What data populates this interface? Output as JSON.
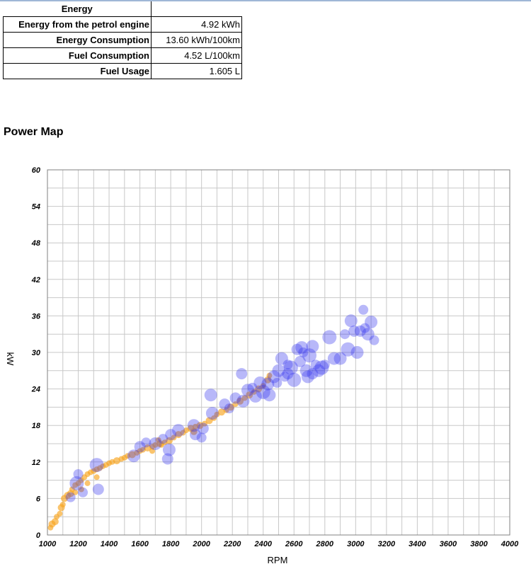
{
  "energy_table": {
    "heading": "Energy",
    "rows": [
      {
        "label": "Energy from the petrol engine",
        "value": "4.92 kWh"
      },
      {
        "label": "Energy Consumption",
        "value": "13.60 kWh/100km"
      },
      {
        "label": "Fuel Consumption",
        "value": "4.52 L/100km"
      },
      {
        "label": "Fuel Usage",
        "value": "1.605 L"
      }
    ]
  },
  "section_title": "Power Map",
  "chart_data": {
    "type": "scatter",
    "xlabel": "RPM",
    "ylabel": "kW",
    "xlim": [
      1000,
      4000
    ],
    "ylim": [
      0,
      60
    ],
    "xticks": [
      1000,
      1200,
      1400,
      1600,
      1800,
      2000,
      2200,
      2400,
      2600,
      2800,
      3000,
      3200,
      3400,
      3600,
      3800,
      4000
    ],
    "yticks": [
      0,
      6,
      12,
      18,
      24,
      30,
      36,
      42,
      48,
      54,
      60
    ],
    "grid": true,
    "legend": "none",
    "colors": {
      "orange": "#f7a51e",
      "blue": "#3333ee"
    },
    "series": [
      {
        "color": "orange",
        "points": [
          [
            1020,
            1.2
          ],
          [
            1030,
            1.8
          ],
          [
            1050,
            2.2
          ],
          [
            1060,
            3.0
          ],
          [
            1080,
            3.5
          ],
          [
            1090,
            4.5
          ],
          [
            1100,
            5.0
          ],
          [
            1110,
            6.0
          ],
          [
            1130,
            6.5
          ],
          [
            1150,
            6.8
          ],
          [
            1160,
            7.5
          ],
          [
            1180,
            8.2
          ],
          [
            1200,
            8.5
          ],
          [
            1220,
            9.0
          ],
          [
            1240,
            9.5
          ],
          [
            1260,
            10.0
          ],
          [
            1280,
            10.3
          ],
          [
            1300,
            10.5
          ],
          [
            1320,
            10.8
          ],
          [
            1340,
            11.0
          ],
          [
            1360,
            11.3
          ],
          [
            1380,
            11.5
          ],
          [
            1400,
            11.8
          ],
          [
            1420,
            12.0
          ],
          [
            1450,
            12.2
          ],
          [
            1480,
            12.5
          ],
          [
            1500,
            12.7
          ],
          [
            1520,
            13.0
          ],
          [
            1550,
            13.2
          ],
          [
            1580,
            13.5
          ],
          [
            1600,
            13.8
          ],
          [
            1620,
            14.0
          ],
          [
            1650,
            14.3
          ],
          [
            1680,
            14.5
          ],
          [
            1700,
            14.8
          ],
          [
            1730,
            15.0
          ],
          [
            1760,
            15.2
          ],
          [
            1790,
            15.5
          ],
          [
            1820,
            16.0
          ],
          [
            1850,
            16.5
          ],
          [
            1880,
            16.8
          ],
          [
            1900,
            17.2
          ],
          [
            1930,
            17.5
          ],
          [
            1960,
            17.8
          ],
          [
            1990,
            18.0
          ],
          [
            2020,
            18.3
          ],
          [
            2050,
            18.8
          ],
          [
            2080,
            19.2
          ],
          [
            2100,
            19.8
          ],
          [
            2130,
            20.2
          ],
          [
            2160,
            20.5
          ],
          [
            2190,
            21.0
          ],
          [
            2220,
            21.5
          ],
          [
            2250,
            22.0
          ],
          [
            2280,
            22.5
          ],
          [
            2310,
            23.0
          ],
          [
            2340,
            23.5
          ],
          [
            2370,
            24.0
          ],
          [
            2400,
            24.5
          ],
          [
            2430,
            25.5
          ],
          [
            2440,
            26.2
          ],
          [
            1260,
            8.5
          ],
          [
            1220,
            7.5
          ],
          [
            1180,
            7.0
          ],
          [
            1320,
            9.5
          ],
          [
            1720,
            15.6
          ],
          [
            1740,
            14.8
          ],
          [
            1680,
            13.8
          ],
          [
            1950,
            17.0
          ]
        ]
      },
      {
        "color": "blue",
        "points": [
          [
            1150,
            6.2
          ],
          [
            1190,
            8.5
          ],
          [
            1200,
            10.0
          ],
          [
            1230,
            7.0
          ],
          [
            1320,
            11.5
          ],
          [
            1330,
            7.5
          ],
          [
            1560,
            13.0
          ],
          [
            1600,
            14.5
          ],
          [
            1640,
            15.2
          ],
          [
            1700,
            15.0
          ],
          [
            1750,
            15.8
          ],
          [
            1780,
            12.5
          ],
          [
            1790,
            14.0
          ],
          [
            1800,
            16.5
          ],
          [
            1850,
            17.2
          ],
          [
            1950,
            18.0
          ],
          [
            1960,
            16.5
          ],
          [
            2000,
            16.0
          ],
          [
            2010,
            17.5
          ],
          [
            2060,
            23.0
          ],
          [
            2070,
            20.0
          ],
          [
            2150,
            21.5
          ],
          [
            2180,
            20.8
          ],
          [
            2220,
            22.5
          ],
          [
            2260,
            26.5
          ],
          [
            2270,
            22.0
          ],
          [
            2300,
            23.8
          ],
          [
            2330,
            24.2
          ],
          [
            2350,
            22.8
          ],
          [
            2380,
            25.0
          ],
          [
            2400,
            23.5
          ],
          [
            2430,
            24.8
          ],
          [
            2440,
            23.0
          ],
          [
            2470,
            26.0
          ],
          [
            2490,
            25.0
          ],
          [
            2500,
            27.0
          ],
          [
            2520,
            29.0
          ],
          [
            2540,
            26.0
          ],
          [
            2560,
            28.0
          ],
          [
            2580,
            27.5
          ],
          [
            2600,
            25.5
          ],
          [
            2620,
            30.5
          ],
          [
            2640,
            28.5
          ],
          [
            2660,
            30.0
          ],
          [
            2680,
            27.0
          ],
          [
            2700,
            29.5
          ],
          [
            2720,
            31.0
          ],
          [
            2740,
            28.0
          ],
          [
            2760,
            27.0
          ],
          [
            2780,
            27.5
          ],
          [
            2800,
            28.0
          ],
          [
            2830,
            32.5
          ],
          [
            2860,
            29.0
          ],
          [
            2900,
            29.0
          ],
          [
            2930,
            33.0
          ],
          [
            2950,
            30.5
          ],
          [
            2970,
            35.2
          ],
          [
            2990,
            33.5
          ],
          [
            3010,
            30.0
          ],
          [
            3030,
            33.5
          ],
          [
            3050,
            37.0
          ],
          [
            3060,
            34.0
          ],
          [
            3080,
            33.0
          ],
          [
            3100,
            35.0
          ],
          [
            3120,
            32.0
          ],
          [
            2720,
            26.5
          ],
          [
            2650,
            30.8
          ],
          [
            2560,
            26.5
          ],
          [
            2690,
            26.0
          ]
        ]
      }
    ]
  }
}
